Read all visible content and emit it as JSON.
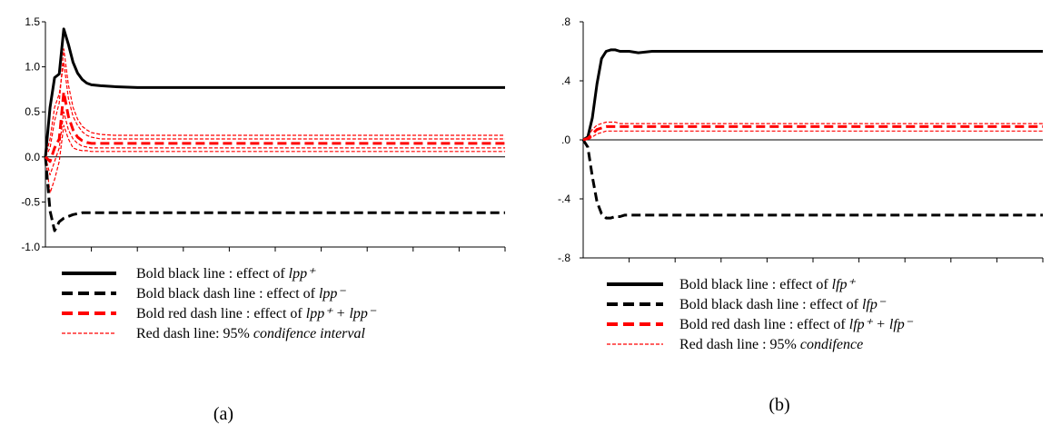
{
  "chart_data": [
    {
      "type": "line",
      "caption": "(a)",
      "ylim": [
        -1.0,
        1.5
      ],
      "yticks": [
        "1.5",
        "1.0",
        "0.5",
        "0.0",
        "-0.5",
        "-1.0"
      ],
      "yticks_values": [
        1.5,
        1.0,
        0.5,
        0.0,
        -0.5,
        -1.0
      ],
      "x": [
        0,
        1,
        2,
        3,
        4,
        5,
        6,
        7,
        8,
        9,
        10,
        12,
        15,
        20,
        25,
        30,
        40,
        50,
        60,
        70,
        80,
        90,
        100
      ],
      "series": [
        {
          "style": "bold-black",
          "values": [
            0.0,
            0.55,
            0.88,
            0.92,
            1.42,
            1.25,
            1.05,
            0.93,
            0.86,
            0.82,
            0.8,
            0.79,
            0.78,
            0.77,
            0.77,
            0.77,
            0.77,
            0.77,
            0.77,
            0.77,
            0.77,
            0.77,
            0.77
          ]
        },
        {
          "style": "bold-black-dash",
          "values": [
            0.0,
            -0.6,
            -0.82,
            -0.72,
            -0.68,
            -0.66,
            -0.64,
            -0.63,
            -0.62,
            -0.62,
            -0.62,
            -0.62,
            -0.62,
            -0.62,
            -0.62,
            -0.62,
            -0.62,
            -0.62,
            -0.62,
            -0.62,
            -0.62,
            -0.62,
            -0.62
          ]
        },
        {
          "style": "bold-red-dash",
          "values": [
            0.0,
            -0.05,
            0.1,
            0.2,
            0.72,
            0.45,
            0.3,
            0.22,
            0.18,
            0.16,
            0.15,
            0.15,
            0.15,
            0.15,
            0.15,
            0.15,
            0.15,
            0.15,
            0.15,
            0.15,
            0.15,
            0.15,
            0.15
          ]
        },
        {
          "style": "red-dash",
          "values": [
            0.0,
            0.1,
            0.4,
            0.6,
            1.2,
            0.8,
            0.55,
            0.42,
            0.34,
            0.3,
            0.27,
            0.25,
            0.24,
            0.24,
            0.24,
            0.24,
            0.24,
            0.24,
            0.24,
            0.24,
            0.24,
            0.24,
            0.24
          ]
        },
        {
          "style": "red-dash",
          "values": [
            0.0,
            -0.4,
            -0.25,
            -0.05,
            0.35,
            0.2,
            0.1,
            0.08,
            0.07,
            0.07,
            0.06,
            0.06,
            0.06,
            0.06,
            0.06,
            0.06,
            0.06,
            0.06,
            0.06,
            0.06,
            0.06,
            0.06,
            0.06
          ]
        },
        {
          "style": "red-dash",
          "values": [
            0.0,
            0.2,
            0.55,
            0.7,
            1.05,
            0.65,
            0.45,
            0.35,
            0.28,
            0.24,
            0.22,
            0.2,
            0.2,
            0.2,
            0.2,
            0.2,
            0.2,
            0.2,
            0.2,
            0.2,
            0.2,
            0.2,
            0.2
          ]
        },
        {
          "style": "red-dash",
          "values": [
            0.0,
            -0.2,
            -0.05,
            0.1,
            0.5,
            0.3,
            0.2,
            0.15,
            0.12,
            0.11,
            0.1,
            0.1,
            0.1,
            0.1,
            0.1,
            0.1,
            0.1,
            0.1,
            0.1,
            0.1,
            0.1,
            0.1,
            0.1
          ]
        }
      ],
      "legend": [
        {
          "style": "bold-black",
          "text": "Bold black line :  effect of ",
          "math": "lpp⁺"
        },
        {
          "style": "bold-black-dash",
          "text": "Bold black dash line :  effect of ",
          "math": "lpp⁻"
        },
        {
          "style": "bold-red-dash",
          "text": "Bold red dash line :  effect of  ",
          "math": "lpp⁺ + lpp⁻"
        },
        {
          "style": "red-dash",
          "text": "Red dash line:  95% ",
          "math": "condifence interval"
        }
      ]
    },
    {
      "type": "line",
      "caption": "(b)",
      "ylim": [
        -0.8,
        0.8
      ],
      "yticks": [
        ".8",
        ".4",
        ".0",
        "-.4",
        "-.8"
      ],
      "yticks_values": [
        0.8,
        0.4,
        0.0,
        -0.4,
        -0.8
      ],
      "x": [
        0,
        1,
        2,
        3,
        4,
        5,
        6,
        7,
        8,
        9,
        10,
        12,
        15,
        20,
        25,
        30,
        40,
        50,
        60,
        70,
        80,
        90,
        100
      ],
      "series": [
        {
          "style": "bold-black",
          "values": [
            0.0,
            0.02,
            0.15,
            0.38,
            0.55,
            0.6,
            0.61,
            0.61,
            0.6,
            0.6,
            0.6,
            0.59,
            0.6,
            0.6,
            0.6,
            0.6,
            0.6,
            0.6,
            0.6,
            0.6,
            0.6,
            0.6,
            0.6
          ]
        },
        {
          "style": "bold-black-dash",
          "values": [
            0.0,
            -0.05,
            -0.25,
            -0.42,
            -0.5,
            -0.53,
            -0.53,
            -0.52,
            -0.52,
            -0.51,
            -0.51,
            -0.51,
            -0.51,
            -0.51,
            -0.51,
            -0.51,
            -0.51,
            -0.51,
            -0.51,
            -0.51,
            -0.51,
            -0.51,
            -0.51
          ]
        },
        {
          "style": "bold-red-dash",
          "values": [
            0.0,
            0.01,
            0.04,
            0.07,
            0.08,
            0.09,
            0.09,
            0.09,
            0.09,
            0.09,
            0.09,
            0.09,
            0.09,
            0.09,
            0.09,
            0.09,
            0.09,
            0.09,
            0.09,
            0.09,
            0.09,
            0.09,
            0.09
          ]
        },
        {
          "style": "red-dash",
          "values": [
            0.0,
            0.02,
            0.07,
            0.1,
            0.11,
            0.12,
            0.12,
            0.12,
            0.11,
            0.11,
            0.11,
            0.11,
            0.11,
            0.11,
            0.11,
            0.11,
            0.11,
            0.11,
            0.11,
            0.11,
            0.11,
            0.11,
            0.11
          ]
        },
        {
          "style": "red-dash",
          "values": [
            0.0,
            0.0,
            0.02,
            0.04,
            0.05,
            0.06,
            0.06,
            0.06,
            0.06,
            0.06,
            0.06,
            0.06,
            0.06,
            0.06,
            0.06,
            0.06,
            0.06,
            0.06,
            0.06,
            0.06,
            0.06,
            0.06,
            0.06
          ]
        }
      ],
      "legend": [
        {
          "style": "bold-black",
          "text": "Bold black line :  effect of ",
          "math": "lfp⁺"
        },
        {
          "style": "bold-black-dash",
          "text": "Bold black dash line :  effect of ",
          "math": "lfp⁻"
        },
        {
          "style": "bold-red-dash",
          "text": "Bold red dash line :  effect of  ",
          "math": "lfp⁺ + lfp⁻"
        },
        {
          "style": "red-dash",
          "text": "Red dash line :  95% ",
          "math": "condifence"
        }
      ]
    }
  ],
  "colors": {
    "black": "#000000",
    "red": "#ff0000"
  }
}
